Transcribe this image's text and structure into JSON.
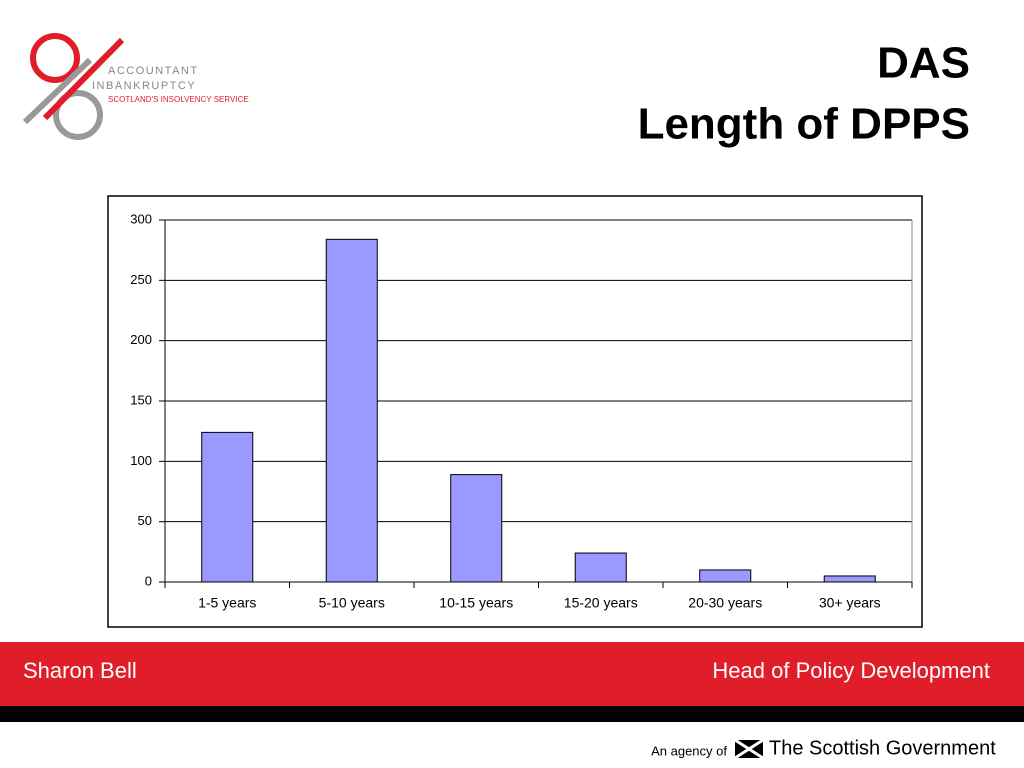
{
  "header": {
    "title": "DAS",
    "subtitle": "Length of DPPS",
    "logo": {
      "line1": "ACCOUNTANT",
      "line2": "INBANKRUPTCY",
      "line3": "SCOTLAND'S INSOLVENCY SERVICE"
    }
  },
  "chart_data": {
    "type": "bar",
    "categories": [
      "1-5 years",
      "5-10 years",
      "10-15 years",
      "15-20 years",
      "20-30 years",
      "30+ years"
    ],
    "values": [
      124,
      284,
      89,
      24,
      10,
      5
    ],
    "color": "#9999ff",
    "ylim": [
      0,
      300
    ],
    "yticks": [
      0,
      50,
      100,
      150,
      200,
      250,
      300
    ],
    "grid": true
  },
  "footer": {
    "name": "Sharon Bell",
    "role": "Head of Policy Development",
    "agency": "An agency of",
    "government": "The Scottish Government"
  }
}
